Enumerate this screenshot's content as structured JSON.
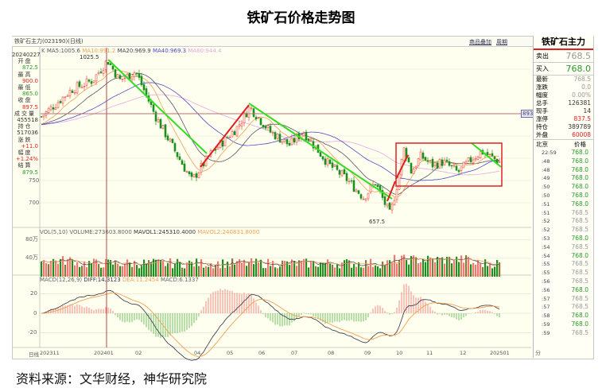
{
  "title": "铁矿石价格走势图",
  "source": "资料来源：文华财经，神华研究院",
  "window": {
    "instrument": "铁矿石主力(023190)(日线)",
    "buttons": [
      "商品叠加",
      "周期"
    ]
  },
  "ma_header": {
    "k": "K",
    "ma5": "MA5:1005.6",
    "ma10": "MA10:991.2",
    "ma20": "MA20:969.9",
    "ma40": "MA40:969.3",
    "ma60": "MA60:944.4"
  },
  "vol_header": {
    "vol": "VOL(5,10) VOLUME:273603.8000",
    "mavol1": "MAVOL1:245310.4000",
    "mavol2": "MAVOL2:240831.8000"
  },
  "macd_header": {
    "macd": "MACD(12,26,9)",
    "diff": "DIFF:14.3123",
    "dea": "DEA:11.2454",
    "hist": "MACD:6.1337"
  },
  "left_panel": {
    "date": "20240227",
    "open_label": "开盘",
    "open": "872.5",
    "high_label": "最高",
    "high": "900.0",
    "low_label": "最低",
    "low": "865.0",
    "close_label": "收盘",
    "close": "897.5",
    "volume_label": "成交量",
    "volume": "455518",
    "oi_label": "持仓",
    "oi": "517036",
    "change_label": "涨跌",
    "change": "+11.0",
    "pct_label": "幅度",
    "pct": "+1.24%",
    "settle_label": "结算",
    "settle": "879.5"
  },
  "right_panel": {
    "title": "铁矿石主力",
    "ask_label": "卖出",
    "ask": "768.5",
    "bid_label": "买入",
    "bid": "768.0",
    "stats": [
      {
        "label": "最新",
        "value": "768.5",
        "color": "gray"
      },
      {
        "label": "涨跌",
        "value": "0.0",
        "color": "gray"
      },
      {
        "label": "幅度",
        "value": "0.00%",
        "color": "gray"
      },
      {
        "label": "总手",
        "value": "126381",
        "color": "black"
      },
      {
        "label": "现手",
        "value": "14",
        "color": "black"
      },
      {
        "label": "涨停",
        "value": "837.5",
        "color": "red"
      },
      {
        "label": "持仓",
        "value": "389789",
        "color": "black"
      },
      {
        "label": "外盘",
        "value": "60008",
        "color": "red"
      }
    ],
    "ticks_header": {
      "time": "北京",
      "price": "价格"
    },
    "ticks": [
      {
        "t": "22:59",
        "p": "768.0"
      },
      {
        "t": ":48",
        "p": "768.0"
      },
      {
        "t": ":48",
        "p": "768.0"
      },
      {
        "t": ":49",
        "p": "768.0"
      },
      {
        "t": ":50",
        "p": "768.0"
      },
      {
        "t": ":50",
        "p": "768.0"
      },
      {
        "t": ":51",
        "p": "768.0"
      },
      {
        "t": ":51",
        "p": "768.5"
      },
      {
        "t": ":52",
        "p": "768.5"
      },
      {
        "t": ":52",
        "p": "768.5"
      },
      {
        "t": ":53",
        "p": "768.0"
      },
      {
        "t": ":54",
        "p": "768.5"
      },
      {
        "t": ":54",
        "p": "768.0"
      },
      {
        "t": ":55",
        "p": "768.5"
      },
      {
        "t": ":55",
        "p": "768.5"
      },
      {
        "t": ":56",
        "p": "768.5"
      },
      {
        "t": ":56",
        "p": "768.0"
      },
      {
        "t": ":57",
        "p": "768.5"
      },
      {
        "t": ":57",
        "p": "768.5"
      },
      {
        "t": ":58",
        "p": "768.0"
      },
      {
        "t": ":59",
        "p": "768.0"
      },
      {
        "t": ":59",
        "p": "768.5"
      }
    ],
    "footer": "分"
  },
  "colors": {
    "up": "#e8504a",
    "down": "#1f8f1f",
    "ma10": "#f0a050",
    "ma20": "#555566",
    "ma40": "#4a4ac8",
    "ma60": "#e8a8e0",
    "trend_down": "#33dd22",
    "trend_up": "#e02020",
    "bg": "#fffff0"
  },
  "chart_data": {
    "type": "candlestick",
    "price_axis": {
      "ticks": [
        750,
        700
      ],
      "crosshair_value": "893.9"
    },
    "annotations": {
      "high": "1025.5",
      "low": "657.5"
    },
    "volume_axis": {
      "ticks": [
        "80万",
        "40万"
      ]
    },
    "macd_axis": {
      "ticks": [
        20,
        0,
        -20
      ]
    },
    "x_ticks": [
      "日线",
      "202311",
      "202401",
      "02",
      "04",
      "05",
      "06",
      "07",
      "08",
      "09",
      "10",
      "11",
      "12",
      "202501"
    ],
    "price_path": [
      {
        "d": "2023-11-01",
        "c": 890
      },
      {
        "d": "2023-12-01",
        "c": 955
      },
      {
        "d": "2023-12-20",
        "c": 975
      },
      {
        "d": "2024-01-03",
        "c": 1020
      },
      {
        "d": "2024-01-15",
        "c": 975
      },
      {
        "d": "2024-01-31",
        "c": 995
      },
      {
        "d": "2024-02-20",
        "c": 895
      },
      {
        "d": "2024-03-10",
        "c": 820
      },
      {
        "d": "2024-03-28",
        "c": 750
      },
      {
        "d": "2024-04-15",
        "c": 810
      },
      {
        "d": "2024-05-10",
        "c": 870
      },
      {
        "d": "2024-05-22",
        "c": 915
      },
      {
        "d": "2024-06-10",
        "c": 860
      },
      {
        "d": "2024-06-28",
        "c": 830
      },
      {
        "d": "2024-07-10",
        "c": 860
      },
      {
        "d": "2024-08-01",
        "c": 785
      },
      {
        "d": "2024-08-15",
        "c": 755
      },
      {
        "d": "2024-08-30",
        "c": 712
      },
      {
        "d": "2024-09-10",
        "c": 745
      },
      {
        "d": "2024-09-24",
        "c": 672
      },
      {
        "d": "2024-09-30",
        "c": 735
      },
      {
        "d": "2024-10-08",
        "c": 825
      },
      {
        "d": "2024-10-15",
        "c": 770
      },
      {
        "d": "2024-10-25",
        "c": 805
      },
      {
        "d": "2024-11-05",
        "c": 785
      },
      {
        "d": "2024-11-15",
        "c": 792
      },
      {
        "d": "2024-11-28",
        "c": 768
      },
      {
        "d": "2024-12-10",
        "c": 800
      },
      {
        "d": "2024-12-18",
        "c": 815
      },
      {
        "d": "2025-01-02",
        "c": 790
      },
      {
        "d": "2025-01-10",
        "c": 780
      }
    ]
  }
}
